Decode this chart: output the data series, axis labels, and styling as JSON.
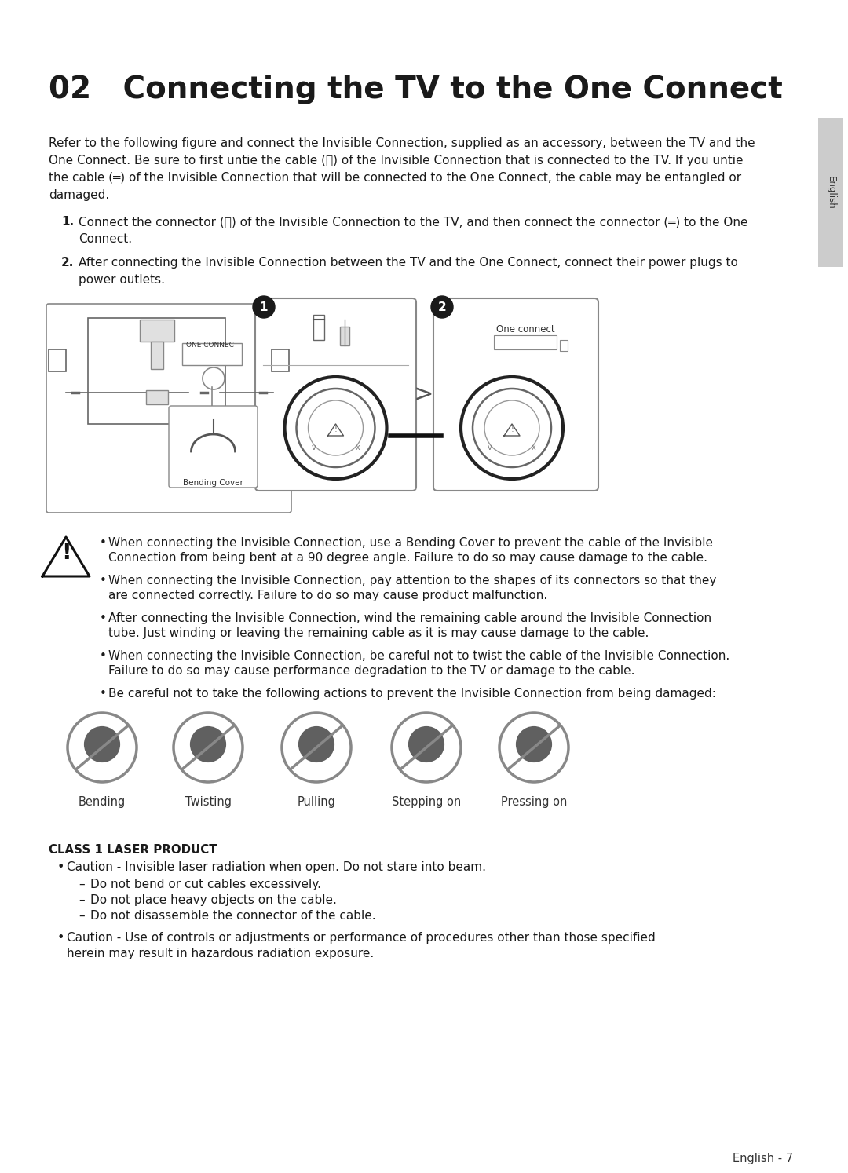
{
  "title": "02   Connecting the TV to the One Connect",
  "bg_color": "#ffffff",
  "text_color": "#1a1a1a",
  "body_lines": [
    "Refer to the following figure and connect the Invisible Connection, supplied as an accessory, between the TV and the",
    "One Connect. Be sure to first untie the cable (ⓔ) of the Invisible Connection that is connected to the TV. If you untie",
    "the cable (═) of the Invisible Connection that will be connected to the One Connect, the cable may be entangled or",
    "damaged."
  ],
  "step1_num": "1.",
  "step1_line1": "Connect the connector (ⓔ) of the Invisible Connection to the TV, and then connect the connector (═) to the One",
  "step1_line2": "Connect.",
  "step2_num": "2.",
  "step2_line1": "After connecting the Invisible Connection between the TV and the One Connect, connect their power plugs to",
  "step2_line2": "power outlets.",
  "one_connect_label": "ONE CONNECT",
  "bending_cover_label": "Bending Cover",
  "one_connect2_label": "One connect",
  "arrow_char": ">",
  "warn_bullets": [
    [
      "When connecting the Invisible Connection, use a Bending Cover to prevent the cable of the Invisible",
      "Connection from being bent at a 90 degree angle. Failure to do so may cause damage to the cable."
    ],
    [
      "When connecting the Invisible Connection, pay attention to the shapes of its connectors so that they",
      "are connected correctly. Failure to do so may cause product malfunction."
    ],
    [
      "After connecting the Invisible Connection, wind the remaining cable around the Invisible Connection",
      "tube. Just winding or leaving the remaining cable as it is may cause damage to the cable."
    ],
    [
      "When connecting the Invisible Connection, be careful not to twist the cable of the Invisible Connection.",
      "Failure to do so may cause performance degradation to the TV or damage to the cable."
    ],
    [
      "Be careful not to take the following actions to prevent the Invisible Connection from being damaged:"
    ]
  ],
  "icon_labels": [
    "Bending",
    "Twisting",
    "Pulling",
    "Stepping on",
    "Pressing on"
  ],
  "class1_title": "CLASS 1 LASER PRODUCT",
  "class1_b1": "Caution - Invisible laser radiation when open. Do not stare into beam.",
  "class1_subs": [
    "Do not bend or cut cables excessively.",
    "Do not place heavy objects on the cable.",
    "Do not disassemble the connector of the cable."
  ],
  "class1_b2_line1": "Caution - Use of controls or adjustments or performance of procedures other than those specified",
  "class1_b2_line2": "herein may result in hazardous radiation exposure.",
  "footer": "English - 7",
  "sidebar": "English"
}
